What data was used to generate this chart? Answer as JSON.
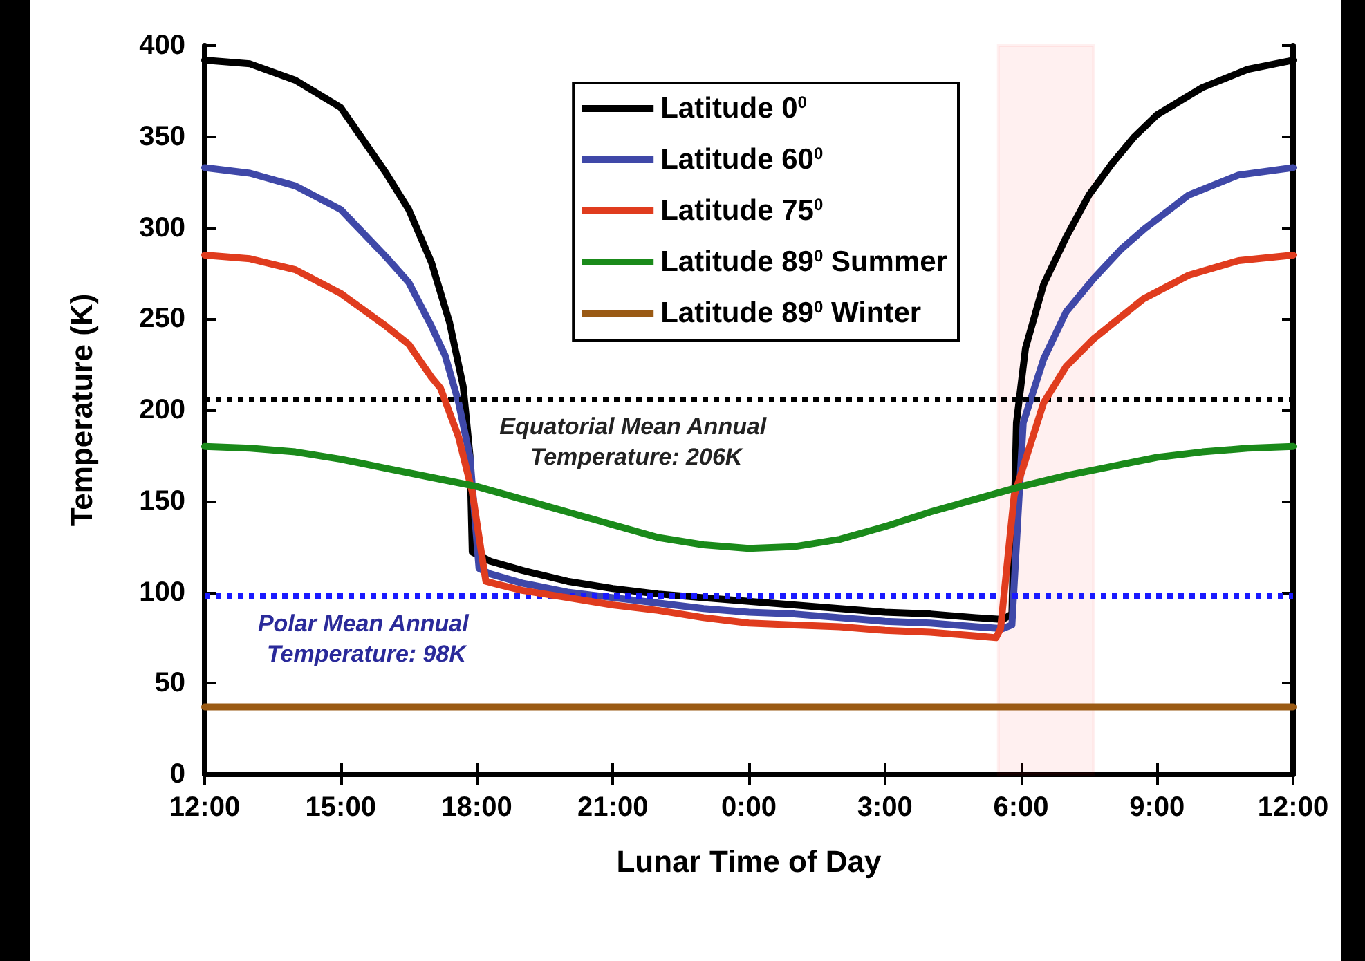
{
  "chart_data": {
    "type": "line",
    "xlabel": "Lunar Time of Day",
    "ylabel": "Temperature (K)",
    "xlim": [
      "2000-01-01T12:00",
      "2000-01-02T12:00"
    ],
    "ylim": [
      0,
      400
    ],
    "xticks": [
      {
        "value": "2000-01-01T12:00",
        "label": "12:00"
      },
      {
        "value": "2000-01-01T15:00",
        "label": "15:00"
      },
      {
        "value": "2000-01-01T18:00",
        "label": "18:00"
      },
      {
        "value": "2000-01-01T21:00",
        "label": "21:00"
      },
      {
        "value": "2000-01-02T00:00",
        "label": "0:00"
      },
      {
        "value": "2000-01-02T03:00",
        "label": "3:00"
      },
      {
        "value": "2000-01-02T06:00",
        "label": "6:00"
      },
      {
        "value": "2000-01-02T09:00",
        "label": "9:00"
      },
      {
        "value": "2000-01-02T12:00",
        "label": "12:00"
      }
    ],
    "yticks": [
      0,
      50,
      100,
      150,
      200,
      250,
      300,
      350,
      400
    ],
    "grid": false,
    "legend": "top right",
    "marker": "none",
    "line_style": "solid",
    "series": [
      {
        "name": "Latitude 0$^{0}$",
        "color": "#000000",
        "x": [
          "2000-01-01T12:00",
          "2000-01-01T13:00",
          "2000-01-01T14:00",
          "2000-01-01T15:00",
          "2000-01-01T16:00",
          "2000-01-01T16:30",
          "2000-01-01T17:00",
          "2000-01-01T17:24",
          "2000-01-01T17:42",
          "2000-01-01T17:51",
          "2000-01-01T17:54",
          "2000-01-01T18:18",
          "2000-01-01T19:00",
          "2000-01-01T20:00",
          "2000-01-01T21:00",
          "2000-01-01T22:00",
          "2000-01-01T23:00",
          "2000-01-02T00:00",
          "2000-01-02T01:00",
          "2000-01-02T02:00",
          "2000-01-02T03:00",
          "2000-01-02T04:00",
          "2000-01-02T05:00",
          "2000-01-02T05:36",
          "2000-01-02T05:48",
          "2000-01-02T05:54",
          "2000-01-02T06:06",
          "2000-01-02T06:30",
          "2000-01-02T07:00",
          "2000-01-02T07:30",
          "2000-01-02T08:00",
          "2000-01-02T08:30",
          "2000-01-02T09:00",
          "2000-01-02T10:00",
          "2000-01-02T11:00",
          "2000-01-02T12:00"
        ],
        "values": [
          392,
          390,
          381,
          366,
          330,
          310,
          281,
          248,
          213,
          175,
          122,
          117,
          112,
          106,
          102,
          99,
          97,
          95,
          93,
          91,
          89,
          88,
          86,
          85,
          88,
          193,
          234,
          269,
          295,
          318,
          335,
          350,
          362,
          377,
          387,
          392
        ]
      },
      {
        "name": "Latitude 60$^{0}$",
        "color": "#3f48a8",
        "x": [
          "2000-01-01T12:00",
          "2000-01-01T13:00",
          "2000-01-01T14:00",
          "2000-01-01T15:00",
          "2000-01-01T16:00",
          "2000-01-01T16:30",
          "2000-01-01T17:00",
          "2000-01-01T17:18",
          "2000-01-01T17:36",
          "2000-01-01T17:51",
          "2000-01-01T18:03",
          "2000-01-01T18:18",
          "2000-01-01T19:00",
          "2000-01-01T20:00",
          "2000-01-01T21:00",
          "2000-01-01T22:00",
          "2000-01-01T23:00",
          "2000-01-02T00:00",
          "2000-01-02T01:00",
          "2000-01-02T02:00",
          "2000-01-02T03:00",
          "2000-01-02T04:00",
          "2000-01-02T05:00",
          "2000-01-02T05:36",
          "2000-01-02T05:48",
          "2000-01-02T06:03",
          "2000-01-02T06:30",
          "2000-01-02T07:00",
          "2000-01-02T07:36",
          "2000-01-02T08:12",
          "2000-01-02T08:42",
          "2000-01-02T09:42",
          "2000-01-02T10:48",
          "2000-01-02T12:00"
        ],
        "values": [
          333,
          330,
          323,
          310,
          284,
          270,
          246,
          230,
          204,
          174,
          113,
          110,
          105,
          100,
          97,
          94,
          91,
          89,
          88,
          86,
          84,
          83,
          81,
          80,
          82,
          193,
          228,
          254,
          272,
          288,
          299,
          318,
          329,
          333
        ]
      },
      {
        "name": "Latitude 75$^{0}$",
        "color": "#e03c1e",
        "x": [
          "2000-01-01T12:00",
          "2000-01-01T13:00",
          "2000-01-01T14:00",
          "2000-01-01T15:00",
          "2000-01-01T16:00",
          "2000-01-01T16:30",
          "2000-01-01T17:00",
          "2000-01-01T17:12",
          "2000-01-01T17:36",
          "2000-01-01T17:54",
          "2000-01-01T18:06",
          "2000-01-01T18:12",
          "2000-01-01T18:30",
          "2000-01-01T19:00",
          "2000-01-01T20:00",
          "2000-01-01T21:00",
          "2000-01-01T22:00",
          "2000-01-01T23:00",
          "2000-01-02T00:00",
          "2000-01-02T01:00",
          "2000-01-02T02:00",
          "2000-01-02T03:00",
          "2000-01-02T04:00",
          "2000-01-02T05:00",
          "2000-01-02T05:27",
          "2000-01-02T05:33",
          "2000-01-02T05:51",
          "2000-01-02T06:30",
          "2000-01-02T07:00",
          "2000-01-02T07:36",
          "2000-01-02T08:42",
          "2000-01-02T09:42",
          "2000-01-02T10:48",
          "2000-01-02T12:00"
        ],
        "values": [
          285,
          283,
          277,
          264,
          246,
          236,
          218,
          212,
          185,
          155,
          122,
          106,
          104,
          101,
          97,
          93,
          90,
          86,
          83,
          82,
          81,
          79,
          78,
          76,
          75,
          80,
          153,
          204,
          224,
          239,
          261,
          274,
          282,
          285
        ]
      },
      {
        "name": "Latitude 89$^{0}$ Summer",
        "color": "#1a8a1a",
        "x": [
          "2000-01-01T12:00",
          "2000-01-01T13:00",
          "2000-01-01T14:00",
          "2000-01-01T15:00",
          "2000-01-01T16:00",
          "2000-01-01T17:00",
          "2000-01-01T18:00",
          "2000-01-01T19:00",
          "2000-01-01T20:00",
          "2000-01-01T21:00",
          "2000-01-01T22:00",
          "2000-01-01T23:00",
          "2000-01-02T00:00",
          "2000-01-02T01:00",
          "2000-01-02T02:00",
          "2000-01-02T03:00",
          "2000-01-02T04:00",
          "2000-01-02T05:00",
          "2000-01-02T06:00",
          "2000-01-02T07:00",
          "2000-01-02T08:00",
          "2000-01-02T09:00",
          "2000-01-02T10:00",
          "2000-01-02T11:00",
          "2000-01-02T12:00"
        ],
        "values": [
          180,
          179,
          177,
          173,
          168,
          163,
          158,
          151,
          144,
          137,
          130,
          126,
          124,
          125,
          129,
          136,
          144,
          151,
          158,
          164,
          169,
          174,
          177,
          179,
          180
        ]
      },
      {
        "name": "Latitude 89$^{0}$ Winter",
        "color": "#9a5a14",
        "x": [
          "2000-01-01T12:00",
          "2000-01-02T12:00"
        ],
        "values": [
          37,
          37
        ]
      }
    ],
    "ref_lines": [
      {
        "axis": "y",
        "value": 206,
        "label": "Equatorial Mean Annual Temperature: 206K",
        "color": "#000000",
        "line_style": "dotted"
      },
      {
        "axis": "y",
        "value": 98,
        "label": "Polar Mean Annual Temperature: 98K",
        "color": "#1a1aff",
        "line_style": "dotted"
      }
    ],
    "bands": [
      {
        "axis": "x",
        "from": "2000-01-02T05:30",
        "to": "2000-01-02T07:36",
        "color": "#ff0000"
      }
    ]
  }
}
